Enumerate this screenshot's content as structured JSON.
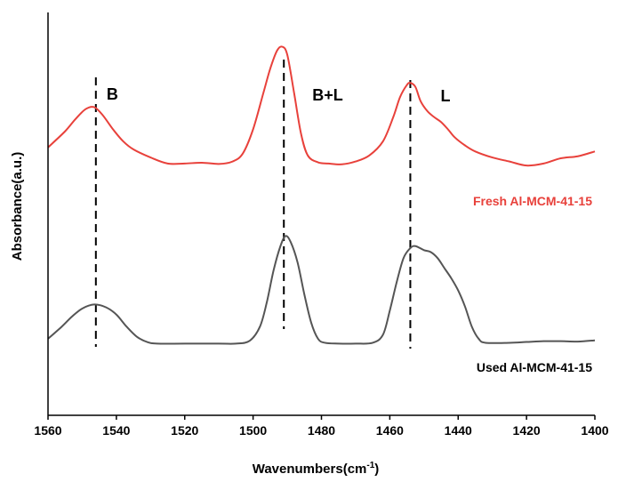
{
  "chart_data": {
    "type": "line",
    "xlabel": "Wavenumbers(cm",
    "xlabel_superscript": "-1",
    "xlabel_suffix": ")",
    "ylabel": "Absorbance(a.u.)",
    "xlim": [
      1560,
      1400
    ],
    "x_reversed": true,
    "ylim": [
      0,
      1.0
    ],
    "grid": false,
    "x_ticks": [
      1560,
      1540,
      1520,
      1500,
      1480,
      1460,
      1440,
      1420,
      1400
    ],
    "x_tick_labels": [
      "1560",
      "1540",
      "1520",
      "1500",
      "1480",
      "1460",
      "1440",
      "1420",
      "1400"
    ],
    "series": [
      {
        "name": "Fresh Al-MCM-41-15",
        "color": "#e8413b",
        "x": [
          1560,
          1555,
          1552,
          1549,
          1546.5,
          1544,
          1541,
          1538,
          1535,
          1530,
          1525,
          1520,
          1515,
          1510,
          1506,
          1503,
          1500,
          1497,
          1495,
          1493,
          1491.5,
          1490,
          1488,
          1486,
          1484,
          1481,
          1478,
          1474,
          1470,
          1466,
          1462,
          1459,
          1457,
          1455,
          1454,
          1452.5,
          1451,
          1449,
          1447,
          1445,
          1443,
          1441,
          1438,
          1435,
          1430,
          1425,
          1420,
          1415,
          1410,
          1405,
          1400
        ],
        "y": [
          0.665,
          0.705,
          0.735,
          0.76,
          0.765,
          0.745,
          0.71,
          0.68,
          0.66,
          0.64,
          0.625,
          0.625,
          0.627,
          0.624,
          0.63,
          0.65,
          0.71,
          0.8,
          0.86,
          0.905,
          0.915,
          0.895,
          0.8,
          0.7,
          0.645,
          0.628,
          0.625,
          0.623,
          0.63,
          0.645,
          0.68,
          0.74,
          0.79,
          0.82,
          0.825,
          0.815,
          0.78,
          0.755,
          0.74,
          0.728,
          0.71,
          0.69,
          0.67,
          0.655,
          0.64,
          0.63,
          0.62,
          0.625,
          0.638,
          0.643,
          0.655
        ]
      },
      {
        "name": "Used Al-MCM-41-15",
        "color": "#555555",
        "x": [
          1560,
          1556,
          1553,
          1550,
          1546.5,
          1543,
          1540,
          1537,
          1534,
          1531,
          1528,
          1520,
          1510,
          1505,
          1501,
          1498,
          1496,
          1494,
          1492,
          1490.5,
          1489,
          1487,
          1485,
          1483,
          1481,
          1479,
          1475,
          1470,
          1465,
          1462,
          1460,
          1458,
          1456,
          1454,
          1452.5,
          1450,
          1448,
          1446,
          1444,
          1442,
          1440,
          1438,
          1436,
          1434,
          1432,
          1425,
          1420,
          1415,
          1410,
          1405,
          1400
        ],
        "y": [
          0.19,
          0.22,
          0.245,
          0.265,
          0.275,
          0.268,
          0.25,
          0.22,
          0.195,
          0.182,
          0.178,
          0.178,
          0.178,
          0.178,
          0.185,
          0.22,
          0.28,
          0.36,
          0.42,
          0.445,
          0.43,
          0.38,
          0.3,
          0.23,
          0.19,
          0.18,
          0.178,
          0.178,
          0.18,
          0.2,
          0.26,
          0.33,
          0.39,
          0.415,
          0.42,
          0.41,
          0.405,
          0.39,
          0.365,
          0.34,
          0.31,
          0.27,
          0.22,
          0.19,
          0.18,
          0.18,
          0.182,
          0.184,
          0.184,
          0.183,
          0.186
        ]
      }
    ],
    "reference_lines": [
      {
        "x": 1546,
        "label": "B"
      },
      {
        "x": 1491,
        "label": "B+L"
      },
      {
        "x": 1454,
        "label": "L"
      }
    ]
  }
}
